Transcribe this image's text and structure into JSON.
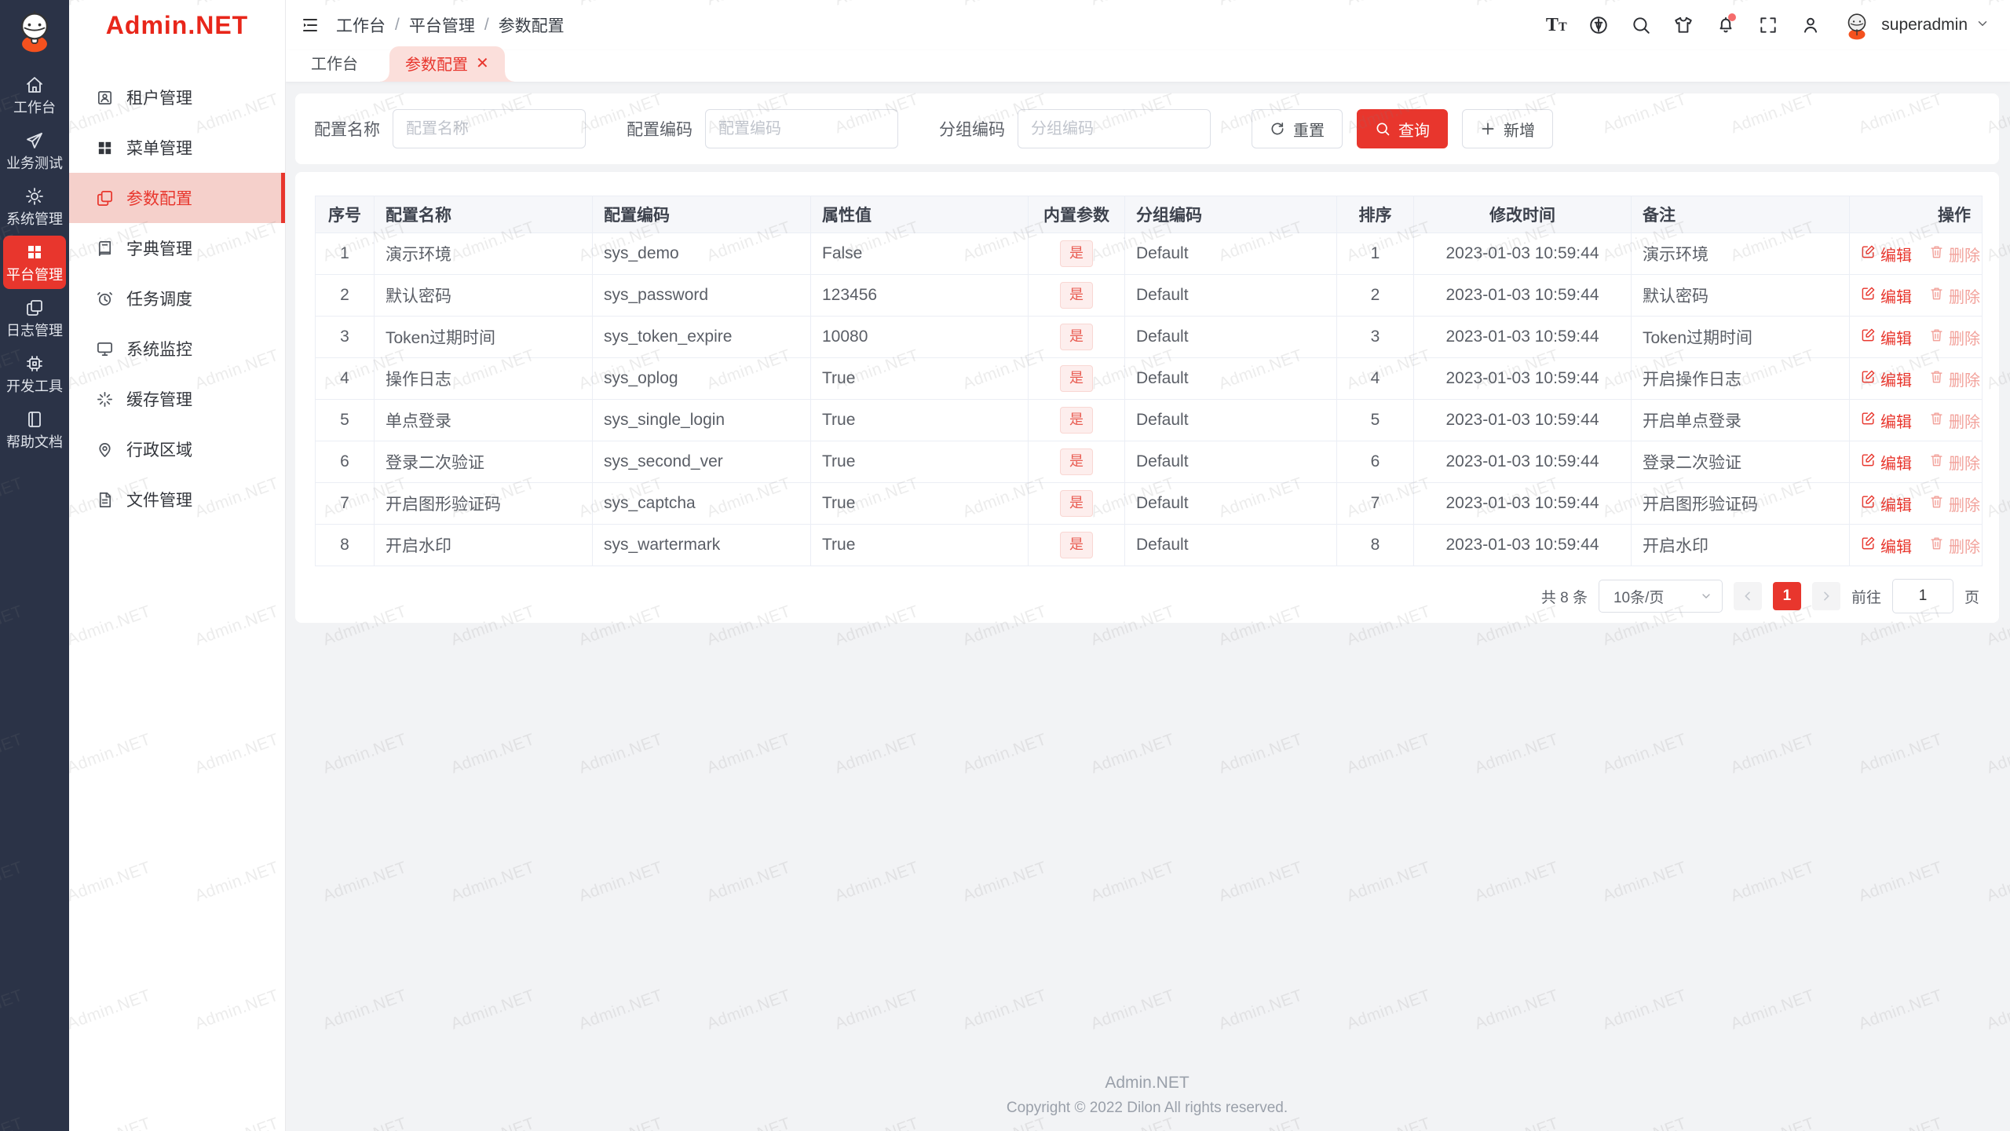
{
  "app": {
    "name": "Admin.NET"
  },
  "colors": {
    "accent": "#e8362d",
    "rail_bg": "#2b3347",
    "logo_red": "#e8261a",
    "active_menu_bg": "#f5d0cb",
    "tag_bg": "#fdeeed",
    "tag_text": "#e95c52",
    "delete_link": "#f2a29b"
  },
  "rail": {
    "items": [
      {
        "label": "工作台",
        "icon": "home-icon",
        "active": false
      },
      {
        "label": "业务测试",
        "icon": "send-icon",
        "active": false
      },
      {
        "label": "系统管理",
        "icon": "gear-icon",
        "active": false
      },
      {
        "label": "平台管理",
        "icon": "grid-icon",
        "active": true
      },
      {
        "label": "日志管理",
        "icon": "logs-icon",
        "active": false
      },
      {
        "label": "开发工具",
        "icon": "chip-icon",
        "active": false
      },
      {
        "label": "帮助文档",
        "icon": "book-icon",
        "active": false
      }
    ]
  },
  "sidebar": {
    "title": "Admin.NET",
    "items": [
      {
        "label": "租户管理",
        "icon": "tenant-icon",
        "active": false
      },
      {
        "label": "菜单管理",
        "icon": "menu-grid-icon",
        "active": false
      },
      {
        "label": "参数配置",
        "icon": "params-icon",
        "active": true
      },
      {
        "label": "字典管理",
        "icon": "dict-icon",
        "active": false
      },
      {
        "label": "任务调度",
        "icon": "schedule-icon",
        "active": false
      },
      {
        "label": "系统监控",
        "icon": "monitor-icon",
        "active": false
      },
      {
        "label": "缓存管理",
        "icon": "cache-icon",
        "active": false
      },
      {
        "label": "行政区域",
        "icon": "region-icon",
        "active": false
      },
      {
        "label": "文件管理",
        "icon": "file-icon",
        "active": false
      }
    ]
  },
  "header": {
    "breadcrumb": [
      "工作台",
      "平台管理",
      "参数配置"
    ],
    "icons": [
      {
        "name": "font-size-icon"
      },
      {
        "name": "language-icon"
      },
      {
        "name": "search-icon"
      },
      {
        "name": "theme-shirt-icon"
      },
      {
        "name": "bell-icon",
        "badge": true
      },
      {
        "name": "fullscreen-icon"
      },
      {
        "name": "user-icon"
      }
    ],
    "user": "superadmin"
  },
  "tabs": [
    {
      "label": "工作台",
      "active": false,
      "closable": false
    },
    {
      "label": "参数配置",
      "active": true,
      "closable": true
    }
  ],
  "search": {
    "fields": [
      {
        "label": "配置名称",
        "placeholder": "配置名称",
        "value": ""
      },
      {
        "label": "配置编码",
        "placeholder": "配置编码",
        "value": ""
      },
      {
        "label": "分组编码",
        "placeholder": "分组编码",
        "value": ""
      }
    ],
    "reset_label": "重置",
    "query_label": "查询",
    "add_label": "新增"
  },
  "table": {
    "columns": [
      "序号",
      "配置名称",
      "配置编码",
      "属性值",
      "内置参数",
      "分组编码",
      "排序",
      "修改时间",
      "备注",
      "操作"
    ],
    "rows": [
      {
        "seq": "1",
        "name": "演示环境",
        "code": "sys_demo",
        "value": "False",
        "builtin": "是",
        "group": "Default",
        "sort": "1",
        "time": "2023-01-03 10:59:44",
        "remark": "演示环境"
      },
      {
        "seq": "2",
        "name": "默认密码",
        "code": "sys_password",
        "value": "123456",
        "builtin": "是",
        "group": "Default",
        "sort": "2",
        "time": "2023-01-03 10:59:44",
        "remark": "默认密码"
      },
      {
        "seq": "3",
        "name": "Token过期时间",
        "code": "sys_token_expire",
        "value": "10080",
        "builtin": "是",
        "group": "Default",
        "sort": "3",
        "time": "2023-01-03 10:59:44",
        "remark": "Token过期时间"
      },
      {
        "seq": "4",
        "name": "操作日志",
        "code": "sys_oplog",
        "value": "True",
        "builtin": "是",
        "group": "Default",
        "sort": "4",
        "time": "2023-01-03 10:59:44",
        "remark": "开启操作日志"
      },
      {
        "seq": "5",
        "name": "单点登录",
        "code": "sys_single_login",
        "value": "True",
        "builtin": "是",
        "group": "Default",
        "sort": "5",
        "time": "2023-01-03 10:59:44",
        "remark": "开启单点登录"
      },
      {
        "seq": "6",
        "name": "登录二次验证",
        "code": "sys_second_ver",
        "value": "True",
        "builtin": "是",
        "group": "Default",
        "sort": "6",
        "time": "2023-01-03 10:59:44",
        "remark": "登录二次验证"
      },
      {
        "seq": "7",
        "name": "开启图形验证码",
        "code": "sys_captcha",
        "value": "True",
        "builtin": "是",
        "group": "Default",
        "sort": "7",
        "time": "2023-01-03 10:59:44",
        "remark": "开启图形验证码"
      },
      {
        "seq": "8",
        "name": "开启水印",
        "code": "sys_wartermark",
        "value": "True",
        "builtin": "是",
        "group": "Default",
        "sort": "8",
        "time": "2023-01-03 10:59:44",
        "remark": "开启水印"
      }
    ],
    "edit_label": "编辑",
    "delete_label": "删除"
  },
  "pagination": {
    "total_text": "共 8 条",
    "page_size": "10条/页",
    "current_page": "1",
    "goto_label": "前往",
    "goto_value": "1",
    "page_unit": "页"
  },
  "footer": {
    "title": "Admin.NET",
    "copyright": "Copyright © 2022 Dilon All rights reserved."
  },
  "watermark": {
    "text": "Admin.NET"
  }
}
